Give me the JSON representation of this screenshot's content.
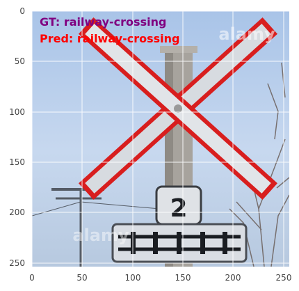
{
  "axes": {
    "x_ticks": [
      "0",
      "50",
      "100",
      "150",
      "200",
      "250"
    ],
    "y_ticks": [
      "0",
      "50",
      "100",
      "150",
      "200",
      "250"
    ],
    "grid": true
  },
  "overlay": {
    "gt_text": "GT: railway-crossing",
    "pred_text": "Pred: railway-crossing",
    "gt_color": "#800080",
    "pred_color": "#ff0000"
  },
  "photo": {
    "watermark": "alamy",
    "sign_number": "2"
  }
}
